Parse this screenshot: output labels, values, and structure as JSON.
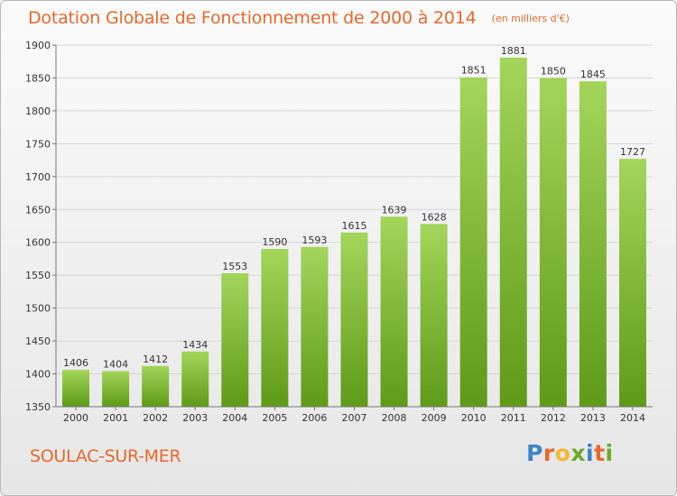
{
  "header": {
    "title": "Dotation Globale de Fonctionnement de 2000 à 2014",
    "unit": "(en milliers d'€)"
  },
  "footer": {
    "city": "SOULAC-SUR-MER",
    "brand": "Proxiti",
    "brand_colors": [
      "#3a86c8",
      "#e8682a",
      "#f2b632",
      "#6aaa2a",
      "#3a86c8",
      "#e8682a",
      "#6aaa2a"
    ]
  },
  "colors": {
    "text_accent": "#e8682a",
    "bar_top": "#a3d55a",
    "bar_bottom": "#5e9a17",
    "grid": "#d4d4d4",
    "axis": "#777777"
  },
  "chart_data": {
    "type": "bar",
    "categories": [
      "2000",
      "2001",
      "2002",
      "2003",
      "2004",
      "2005",
      "2006",
      "2007",
      "2008",
      "2009",
      "2010",
      "2011",
      "2012",
      "2013",
      "2014"
    ],
    "values": [
      1406,
      1404,
      1412,
      1434,
      1553,
      1590,
      1593,
      1615,
      1639,
      1628,
      1851,
      1881,
      1850,
      1845,
      1727
    ],
    "title": "Dotation Globale de Fonctionnement de 2000 à 2014",
    "unit": "(en milliers d'€)",
    "ylim": [
      1350,
      1900
    ],
    "yticks": [
      1350,
      1400,
      1450,
      1500,
      1550,
      1600,
      1650,
      1700,
      1750,
      1800,
      1850,
      1900
    ],
    "grid": true,
    "data_labels": true
  }
}
